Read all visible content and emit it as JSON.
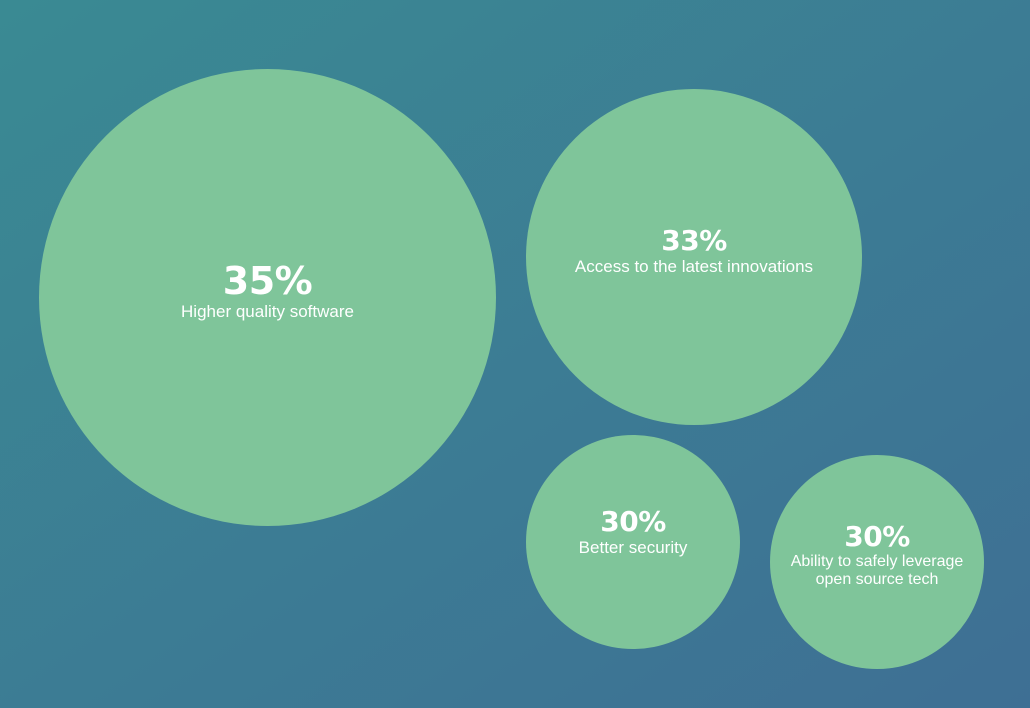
{
  "colors": {
    "background_start": "#3a8a93",
    "background_end": "#3e6f94",
    "bubble": "#7fc59a",
    "text": "#ffffff"
  },
  "chart_data": {
    "type": "bubble",
    "title": "",
    "unit": "%",
    "items": [
      {
        "value_label": "35%",
        "value": 35,
        "label": "Higher quality software"
      },
      {
        "value_label": "33%",
        "value": 33,
        "label": "Access to the latest innovations"
      },
      {
        "value_label": "30%",
        "value": 30,
        "label": "Better security"
      },
      {
        "value_label": "30%",
        "value": 30,
        "label": "Ability to safely leverage open source tech"
      }
    ]
  }
}
